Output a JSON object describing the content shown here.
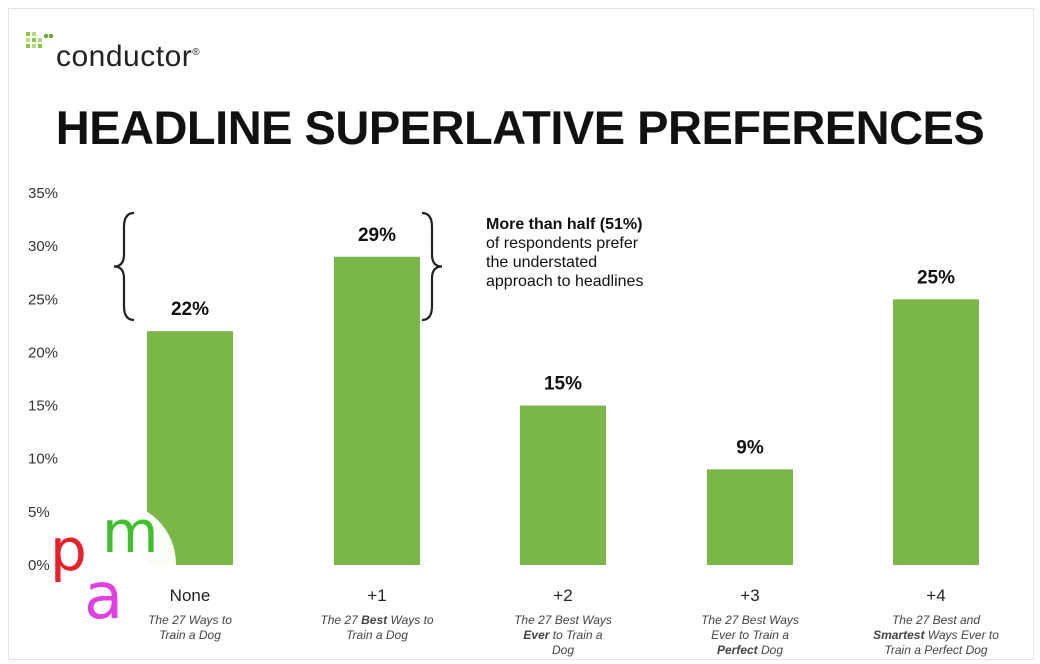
{
  "brand": {
    "name": "conductor",
    "mark": "®",
    "icon": "conductor-dots-logo",
    "accent": "#8cc63f"
  },
  "title": "HEADLINE SUPERLATIVE PREFERENCES",
  "annotation": {
    "lines": [
      "More than half (51%)",
      "of respondents prefer",
      "the understated",
      "approach to headlines"
    ]
  },
  "chart_data": {
    "type": "bar",
    "categories": [
      "None",
      "+1",
      "+2",
      "+3",
      "+4"
    ],
    "values": [
      22,
      29,
      15,
      9,
      25
    ],
    "value_labels": [
      "22%",
      "29%",
      "15%",
      "9%",
      "25%"
    ],
    "examples": [
      [
        [
          "The 27 Ways to",
          ""
        ],
        [
          "Train a Dog",
          ""
        ]
      ],
      [
        [
          "The 27 ",
          ""
        ],
        [
          "Best",
          "b"
        ],
        [
          " Ways to",
          ""
        ],
        [
          "|",
          ""
        ],
        [
          "Train a Dog",
          ""
        ]
      ],
      [
        [
          "The 27 Best Ways",
          ""
        ],
        [
          "|",
          ""
        ],
        [
          "Ever",
          "b"
        ],
        [
          " to Train a",
          ""
        ],
        [
          "|",
          ""
        ],
        [
          "Dog",
          ""
        ]
      ],
      [
        [
          "The 27 Best Ways",
          ""
        ],
        [
          "|",
          ""
        ],
        [
          "Ever to Train a",
          ""
        ],
        [
          "|",
          ""
        ],
        [
          "Perfect",
          "b"
        ],
        [
          " Dog",
          ""
        ]
      ],
      [
        [
          "The 27 Best and",
          ""
        ],
        [
          "|",
          ""
        ],
        [
          "Smartest",
          "b"
        ],
        [
          " Ways Ever to",
          ""
        ],
        [
          "|",
          ""
        ],
        [
          "Train a Perfect Dog",
          ""
        ]
      ]
    ],
    "yticks": [
      "35%",
      "30%",
      "25%",
      "20%",
      "15%",
      "10%",
      "5%",
      "0%"
    ],
    "ylim": [
      0,
      35
    ],
    "bar_color": "#7ab648",
    "grid": false,
    "xlabel": "",
    "ylabel": ""
  },
  "watermark": {
    "letters": [
      "p",
      "m",
      "a"
    ],
    "colors": [
      "#e8202a",
      "#3fbf2c",
      "#e040e0"
    ]
  }
}
